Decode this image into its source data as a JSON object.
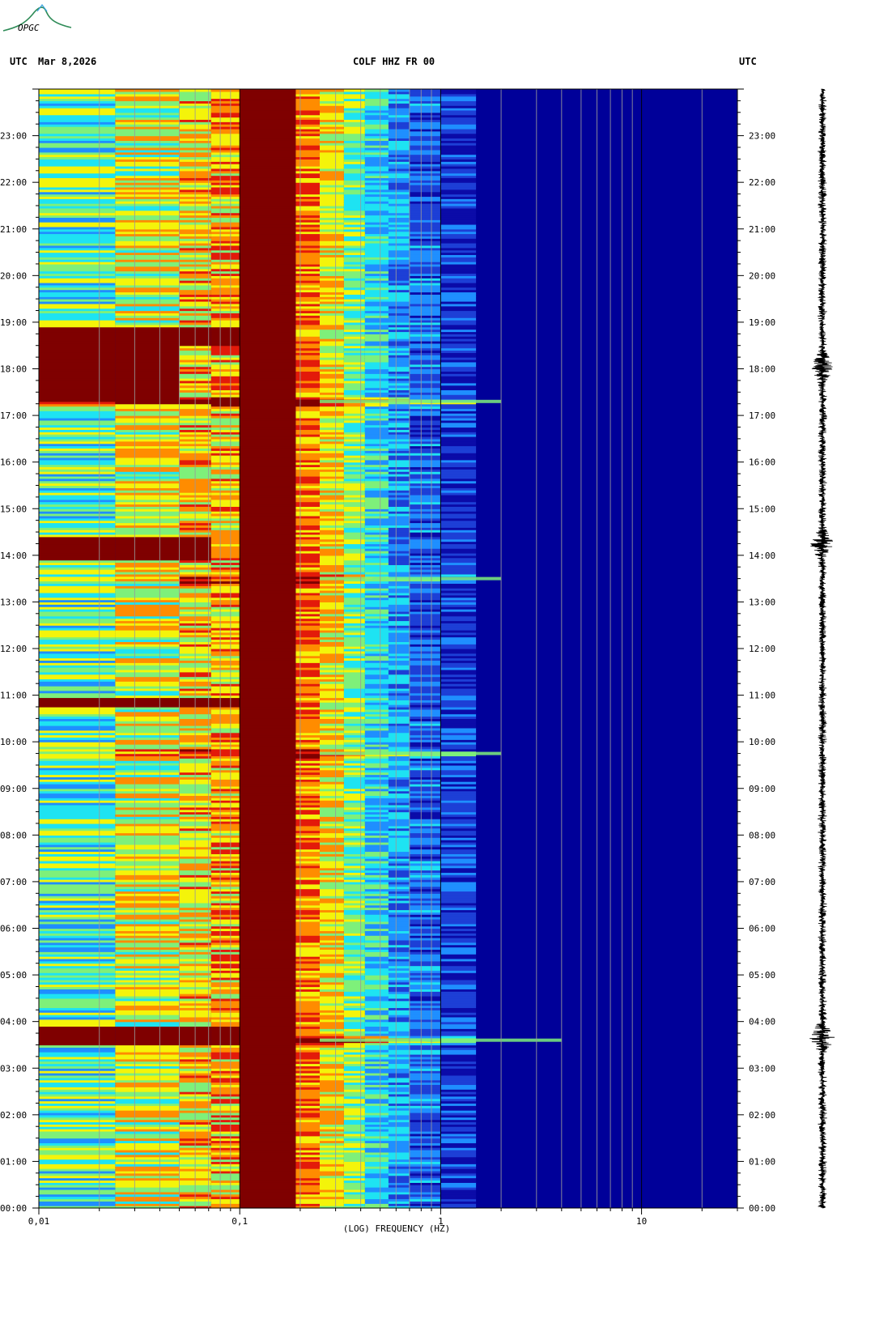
{
  "header": {
    "left_utc": "UTC",
    "date": "Mar 8,2026",
    "station": "COLF HHZ FR 00",
    "right_utc": "UTC"
  },
  "logo": {
    "text": "OPGC",
    "color": "#2e8b57"
  },
  "colors": {
    "background": "#000099",
    "colormap": [
      "#0b0ba8",
      "#1d3fd6",
      "#1f8fff",
      "#1ee3f2",
      "#7ef07a",
      "#f4f40a",
      "#ff8c00",
      "#e31a0a",
      "#7f0000"
    ]
  },
  "chart_data": {
    "type": "heatmap",
    "title": "COLF HHZ FR 00",
    "xlabel": "(LOG) FREQUENCY (HZ)",
    "ylabel": "UTC",
    "x_scale": "log",
    "xlim": [
      0.01,
      30
    ],
    "x_ticks": [
      {
        "value": 0.01,
        "label": "0,01"
      },
      {
        "value": 0.1,
        "label": "0,1"
      },
      {
        "value": 1,
        "label": "1"
      },
      {
        "value": 10,
        "label": "10"
      }
    ],
    "ylim_hours": [
      0,
      24
    ],
    "y_ticks": [
      "00:00",
      "01:00",
      "02:00",
      "03:00",
      "04:00",
      "05:00",
      "06:00",
      "07:00",
      "08:00",
      "09:00",
      "10:00",
      "11:00",
      "12:00",
      "13:00",
      "14:00",
      "15:00",
      "16:00",
      "17:00",
      "18:00",
      "19:00",
      "20:00",
      "21:00",
      "22:00",
      "23:00"
    ],
    "frequency_bands_hz": [
      0.01,
      0.024,
      0.05,
      0.072,
      0.1,
      0.19,
      0.25,
      0.33,
      0.42,
      0.55,
      0.7,
      1,
      1.5,
      30
    ],
    "band_baseline_level": [
      0.45,
      0.6,
      0.65,
      0.72,
      1.0,
      0.78,
      0.64,
      0.5,
      0.36,
      0.26,
      0.18,
      0.1,
      0.0
    ],
    "events": [
      {
        "time_hours": 3.6,
        "peak_freq_hz": 0.9,
        "max_freq_hz": 4,
        "strength": 1.0
      },
      {
        "time_hours": 9.75,
        "peak_freq_hz": 0.6,
        "max_freq_hz": 2,
        "strength": 0.55
      },
      {
        "time_hours": 13.5,
        "peak_freq_hz": 0.5,
        "max_freq_hz": 2,
        "strength": 0.5
      },
      {
        "time_hours": 17.3,
        "peak_freq_hz": 0.9,
        "max_freq_hz": 2,
        "strength": 0.9
      }
    ],
    "long_period_highlights": [
      {
        "start_hours": 3.5,
        "end_hours": 3.9,
        "max_freq_hz": 0.1
      },
      {
        "start_hours": 10.75,
        "end_hours": 10.95,
        "max_freq_hz": 0.1
      },
      {
        "start_hours": 13.9,
        "end_hours": 14.4,
        "max_freq_hz": 0.072
      },
      {
        "start_hours": 17.9,
        "end_hours": 18.25,
        "max_freq_hz": 0.024
      },
      {
        "start_hours": 17.3,
        "end_hours": 18.9,
        "max_freq_hz": 0.05
      },
      {
        "start_hours": 18.5,
        "end_hours": 18.9,
        "max_freq_hz": 0.1
      }
    ],
    "seismogram_bursts_hours": [
      3.65,
      14.25,
      18.05
    ],
    "grid": true
  }
}
